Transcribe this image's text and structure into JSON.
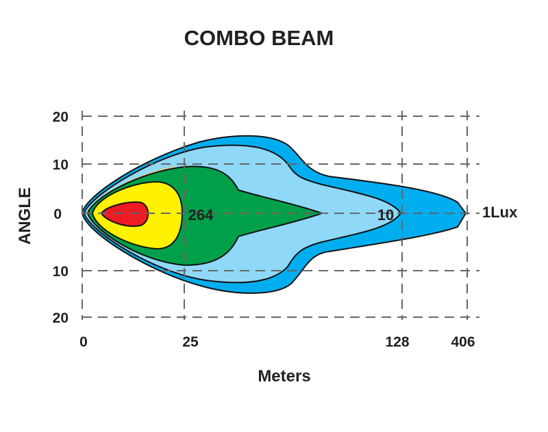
{
  "chart_data": {
    "type": "isolux-contour",
    "title": "COMBO  BEAM",
    "xlabel": "Meters",
    "ylabel": "ANGLE",
    "x_ticks": [
      "0",
      "25",
      "128",
      "406"
    ],
    "y_ticks": [
      "20",
      "10",
      "0",
      "10",
      "20"
    ],
    "grid": true,
    "contour_labels": [
      "264",
      "10",
      "1Lux"
    ],
    "contours": [
      {
        "level": "1 Lux",
        "color": "#00aeef",
        "reach": "406"
      },
      {
        "level": "10",
        "color": "#8fd8f7",
        "reach": "128"
      },
      {
        "level": "264",
        "color": "#00a04a"
      },
      {
        "color": "#d6cf8c"
      },
      {
        "color": "#fff200"
      },
      {
        "color": "#ed1c24"
      }
    ]
  }
}
